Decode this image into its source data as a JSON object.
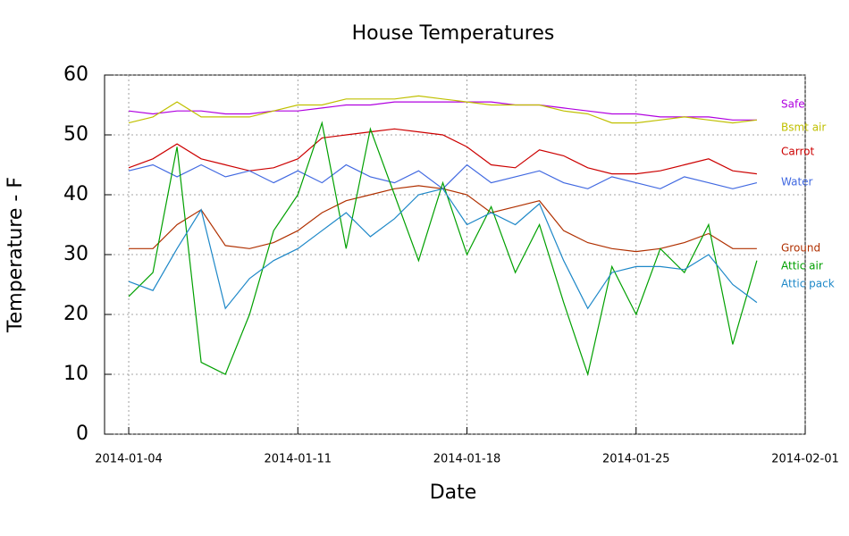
{
  "chart_data": {
    "type": "line",
    "title": "House Temperatures",
    "x_label": "Date",
    "y_label": "Temperature - F",
    "x": [
      "2014-01-04",
      "2014-01-05",
      "2014-01-06",
      "2014-01-07",
      "2014-01-08",
      "2014-01-09",
      "2014-01-10",
      "2014-01-11",
      "2014-01-12",
      "2014-01-13",
      "2014-01-14",
      "2014-01-15",
      "2014-01-16",
      "2014-01-17",
      "2014-01-18",
      "2014-01-19",
      "2014-01-20",
      "2014-01-21",
      "2014-01-22",
      "2014-01-23",
      "2014-01-24",
      "2014-01-25",
      "2014-01-26",
      "2014-01-27",
      "2014-01-28",
      "2014-01-29",
      "2014-01-30"
    ],
    "series": [
      {
        "name": "Safe",
        "color": "#b000e0",
        "values": [
          54,
          53.5,
          54,
          54,
          53.5,
          53.5,
          54,
          54,
          54.5,
          55,
          55,
          55.5,
          55.5,
          55.5,
          55.5,
          55.5,
          55,
          55,
          54.5,
          54,
          53.5,
          53.5,
          53,
          53,
          53,
          52.5,
          52.5
        ]
      },
      {
        "name": "Bsmt air",
        "color": "#c0c000",
        "values": [
          52,
          53,
          55.5,
          53,
          53,
          53,
          54,
          55,
          55,
          56,
          56,
          56,
          56.5,
          56,
          55.5,
          55,
          55,
          55,
          54,
          53.5,
          52,
          52,
          52.5,
          53,
          52.5,
          52,
          52.5
        ]
      },
      {
        "name": "Carrot",
        "color": "#cc0000",
        "values": [
          44.5,
          46,
          48.5,
          46,
          45,
          44,
          44.5,
          46,
          49.5,
          50,
          50.5,
          51,
          50.5,
          50,
          48,
          45,
          44.5,
          47.5,
          46.5,
          44.5,
          43.5,
          43.5,
          44,
          45,
          46,
          44,
          43.5
        ]
      },
      {
        "name": "Water",
        "color": "#4169e1",
        "values": [
          44,
          45,
          43,
          45,
          43,
          44,
          42,
          44,
          42,
          45,
          43,
          42,
          44,
          41,
          45,
          42,
          43,
          44,
          42,
          41,
          43,
          42,
          41,
          43,
          42,
          41,
          42
        ]
      },
      {
        "name": "Ground",
        "color": "#b03000",
        "values": [
          31,
          31,
          35,
          37.5,
          31.5,
          31,
          32,
          34,
          37,
          39,
          40,
          41,
          41.5,
          41,
          40,
          37,
          38,
          39,
          34,
          32,
          31,
          30.5,
          31,
          32,
          33.5,
          31,
          31
        ]
      },
      {
        "name": "Attic air",
        "color": "#00a000",
        "values": [
          23,
          27,
          48,
          12,
          10,
          20,
          34,
          40,
          52,
          31,
          51,
          40,
          29,
          42,
          30,
          38,
          27,
          35,
          22,
          10,
          28,
          20,
          31,
          27,
          35,
          15,
          29
        ]
      },
      {
        "name": "Attic pack",
        "color": "#1e88c8",
        "values": [
          25.5,
          24,
          31,
          37.5,
          21,
          26,
          29,
          31,
          34,
          37,
          33,
          36,
          40,
          41,
          35,
          37,
          35,
          38.5,
          29,
          21,
          27,
          28,
          28,
          27.5,
          30,
          25,
          22
        ]
      }
    ],
    "xlim": [
      "2014-01-03",
      "2014-02-01"
    ],
    "xticks": [
      "2014-01-04",
      "2014-01-11",
      "2014-01-18",
      "2014-01-25",
      "2014-02-01"
    ],
    "ylim": [
      0,
      60
    ],
    "yticks": [
      0,
      10,
      20,
      30,
      40,
      50,
      60
    ],
    "grid": true
  }
}
